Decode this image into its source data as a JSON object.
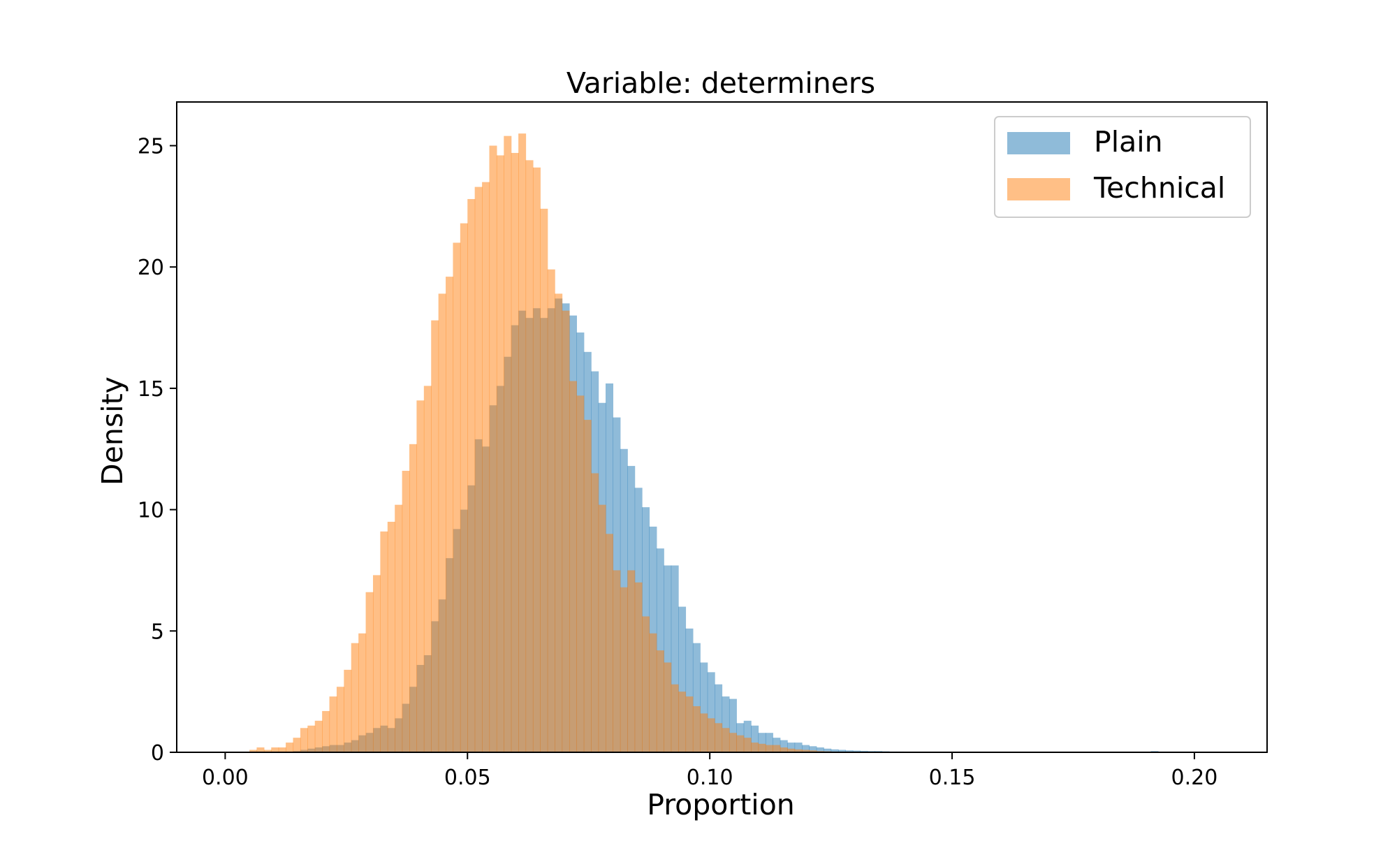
{
  "chart_data": {
    "type": "histogram",
    "title": "Variable: determiners",
    "xlabel": "Proportion",
    "ylabel": "Density",
    "xlim": [
      -0.01,
      0.215
    ],
    "ylim": [
      0,
      26.8
    ],
    "x_ticks": [
      0.0,
      0.05,
      0.1,
      0.15,
      0.2
    ],
    "x_tick_labels": [
      "0.00",
      "0.05",
      "0.10",
      "0.15",
      "0.20"
    ],
    "y_ticks": [
      0,
      5,
      10,
      15,
      20,
      25
    ],
    "y_tick_labels": [
      "0",
      "5",
      "10",
      "15",
      "20",
      "25"
    ],
    "legend_position": "top-right",
    "series": [
      {
        "name": "Plain",
        "color": "#1f77b4",
        "opacity": 0.5,
        "bin_start": 0.005,
        "bin_width": 0.0015,
        "values": [
          0.0,
          0.0,
          0.0,
          0.0,
          0.0,
          0.0,
          0.05,
          0.1,
          0.15,
          0.2,
          0.25,
          0.3,
          0.3,
          0.4,
          0.5,
          0.7,
          0.8,
          1.0,
          1.1,
          1.0,
          1.4,
          2.0,
          2.7,
          3.6,
          4.0,
          5.4,
          6.3,
          8.0,
          9.2,
          10.0,
          11.0,
          12.9,
          12.6,
          14.3,
          15.1,
          16.3,
          17.6,
          18.2,
          17.9,
          18.3,
          17.9,
          18.3,
          18.7,
          18.5,
          18.0,
          17.3,
          16.5,
          15.7,
          14.4,
          15.2,
          13.8,
          12.5,
          11.8,
          10.9,
          10.1,
          9.3,
          8.4,
          7.7,
          7.7,
          6.0,
          5.1,
          4.5,
          3.7,
          3.3,
          2.8,
          2.3,
          2.2,
          1.2,
          1.3,
          1.1,
          0.8,
          0.8,
          0.6,
          0.5,
          0.4,
          0.4,
          0.3,
          0.25,
          0.2,
          0.15,
          0.12,
          0.1,
          0.08,
          0.07,
          0.06,
          0.05,
          0.05,
          0.04,
          0.03,
          0.03,
          0.02,
          0.02,
          0.02,
          0.01,
          0.01,
          0.01,
          0.01,
          0.01,
          0.01,
          0.01,
          0.01,
          0.01,
          0.01,
          0.01,
          0.01,
          0.01,
          0.01,
          0.01,
          0.01,
          0.01,
          0.01,
          0.01,
          0.01,
          0.01,
          0.01,
          0.01,
          0.01,
          0.01,
          0.02,
          0.01,
          0.01,
          0.01,
          0.01,
          0.01,
          0.05
        ]
      },
      {
        "name": "Technical",
        "color": "#ff7f0e",
        "opacity": 0.5,
        "bin_start": 0.005,
        "bin_width": 0.0015,
        "values": [
          0.1,
          0.2,
          0.1,
          0.2,
          0.2,
          0.4,
          0.6,
          1.0,
          1.1,
          1.3,
          1.7,
          2.3,
          2.7,
          3.4,
          4.5,
          4.9,
          6.6,
          7.3,
          9.1,
          9.5,
          10.2,
          11.6,
          12.7,
          14.5,
          15.1,
          17.8,
          18.9,
          19.6,
          21.0,
          21.8,
          22.8,
          23.3,
          23.5,
          25.0,
          24.6,
          25.4,
          24.7,
          25.5,
          24.4,
          24.1,
          22.4,
          19.9,
          18.9,
          18.2,
          15.3,
          14.7,
          13.7,
          11.5,
          10.2,
          9.0,
          7.5,
          6.8,
          7.5,
          7.0,
          5.6,
          4.9,
          4.2,
          3.7,
          2.8,
          2.5,
          2.3,
          1.9,
          1.6,
          1.4,
          1.2,
          1.0,
          0.8,
          0.7,
          0.6,
          0.4,
          0.35,
          0.3,
          0.3,
          0.2,
          0.15,
          0.12,
          0.1,
          0.08,
          0.05,
          0.04,
          0.03,
          0.02,
          0.01
        ]
      }
    ]
  }
}
